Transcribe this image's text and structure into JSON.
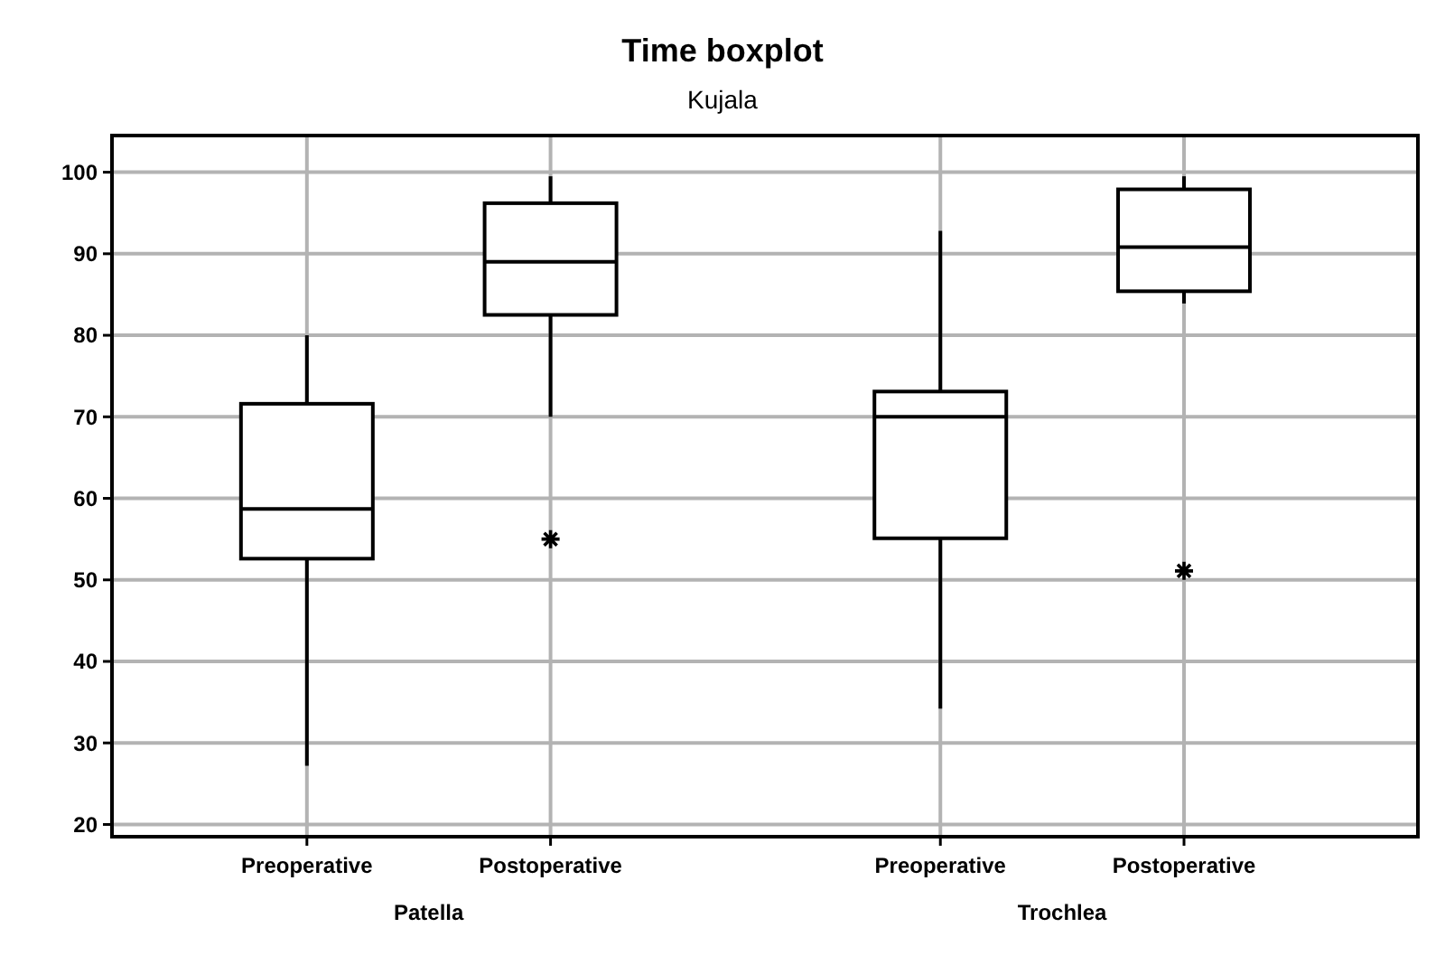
{
  "chart_data": {
    "type": "box",
    "title": "Time boxplot",
    "subtitle": "Kujala",
    "categories": [
      "Preoperative",
      "Postoperative",
      "Preoperative",
      "Postoperative"
    ],
    "annotations": [
      "Patella",
      "Trochlea"
    ],
    "boxes": [
      {
        "low": 27.2,
        "q1": 52.6,
        "median": 58.7,
        "q3": 71.6,
        "high": 80
      },
      {
        "low": 70,
        "q1": 82.5,
        "median": 89,
        "q3": 96.2,
        "high": 99.5,
        "outliers": [
          55
        ]
      },
      {
        "low": 34.2,
        "q1": 55.1,
        "median": 70,
        "q3": 73.1,
        "high": 92.8
      },
      {
        "low": 83.9,
        "q1": 85.4,
        "median": 90.8,
        "q3": 97.9,
        "high": 99.5,
        "outliers": [
          51.1
        ]
      }
    ],
    "ylim": [
      18.5,
      104.5
    ],
    "yticks": [
      20,
      30,
      40,
      50,
      60,
      70,
      80,
      90,
      100
    ],
    "grid": true
  }
}
